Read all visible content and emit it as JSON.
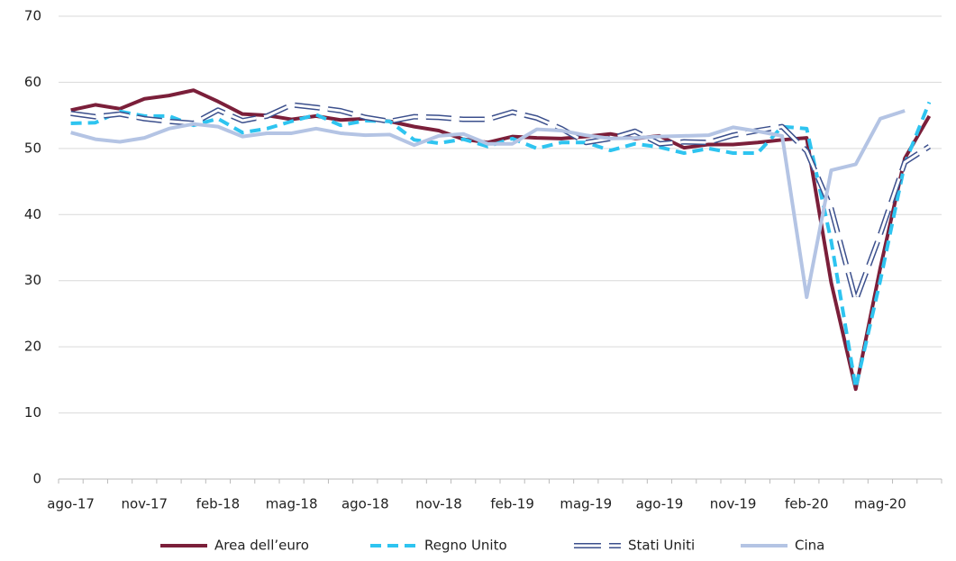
{
  "chart_data": {
    "type": "line",
    "categories": [
      "ago-17",
      null,
      null,
      "nov-17",
      null,
      null,
      "feb-18",
      null,
      null,
      "mag-18",
      null,
      null,
      "ago-18",
      null,
      null,
      "nov-18",
      null,
      null,
      "feb-19",
      null,
      null,
      "mag-19",
      null,
      null,
      "ago-19",
      null,
      null,
      "nov-19",
      null,
      null,
      "feb-20",
      null,
      null,
      "mag-20",
      null,
      null
    ],
    "series": [
      {
        "name": "Area dell’euro",
        "color": "#7b1f3a",
        "line_style": "solid",
        "values": [
          55.8,
          56.6,
          56.0,
          57.5,
          58.0,
          58.8,
          57.1,
          55.2,
          55.0,
          54.4,
          54.9,
          54.3,
          54.5,
          54.1,
          53.3,
          52.7,
          51.4,
          50.9,
          51.8,
          51.6,
          51.5,
          51.8,
          52.2,
          51.5,
          51.9,
          50.1,
          50.6,
          50.6,
          50.9,
          51.3,
          51.6,
          29.7,
          13.6,
          31.9,
          48.5,
          54.9
        ]
      },
      {
        "name": "Regno Unito",
        "color": "#2ec4f0",
        "line_style": "dashed",
        "values": [
          53.8,
          53.9,
          55.6,
          54.9,
          54.9,
          53.5,
          54.5,
          52.4,
          53.0,
          54.1,
          55.1,
          53.5,
          54.2,
          54.1,
          51.3,
          50.8,
          51.4,
          50.3,
          51.5,
          50.0,
          50.9,
          50.9,
          49.7,
          50.7,
          50.2,
          49.3,
          50.0,
          49.3,
          49.3,
          53.3,
          53.0,
          36.0,
          13.8,
          30.0,
          47.7,
          57.0
        ]
      },
      {
        "name": "Stati Uniti",
        "color": "#3b4f8c",
        "line_style": "double-dashed",
        "values": [
          55.3,
          54.8,
          55.2,
          54.5,
          54.1,
          53.8,
          55.8,
          54.2,
          54.9,
          56.6,
          56.2,
          55.7,
          54.7,
          54.1,
          54.8,
          54.7,
          54.4,
          54.4,
          55.5,
          54.6,
          53.0,
          50.9,
          51.5,
          52.6,
          50.7,
          51.0,
          50.9,
          52.0,
          52.7,
          53.3,
          49.6,
          40.9,
          27.0,
          37.0,
          47.9,
          50.3
        ]
      },
      {
        "name": "Cina",
        "color": "#b4c4e4",
        "line_style": "solid",
        "values": [
          52.4,
          51.4,
          51.0,
          51.6,
          53.0,
          53.7,
          53.3,
          51.8,
          52.3,
          52.3,
          53.0,
          52.3,
          52.0,
          52.1,
          50.5,
          51.9,
          52.2,
          50.7,
          50.7,
          52.9,
          52.7,
          52.0,
          51.5,
          51.6,
          51.8,
          51.9,
          52.0,
          53.2,
          52.6,
          51.9,
          27.5,
          46.7,
          47.6,
          54.5,
          55.7,
          null
        ]
      }
    ],
    "ylim": [
      0,
      70
    ],
    "yticks": [
      0,
      10,
      20,
      30,
      40,
      50,
      60,
      70
    ],
    "grid": true,
    "legend": "bottom"
  }
}
